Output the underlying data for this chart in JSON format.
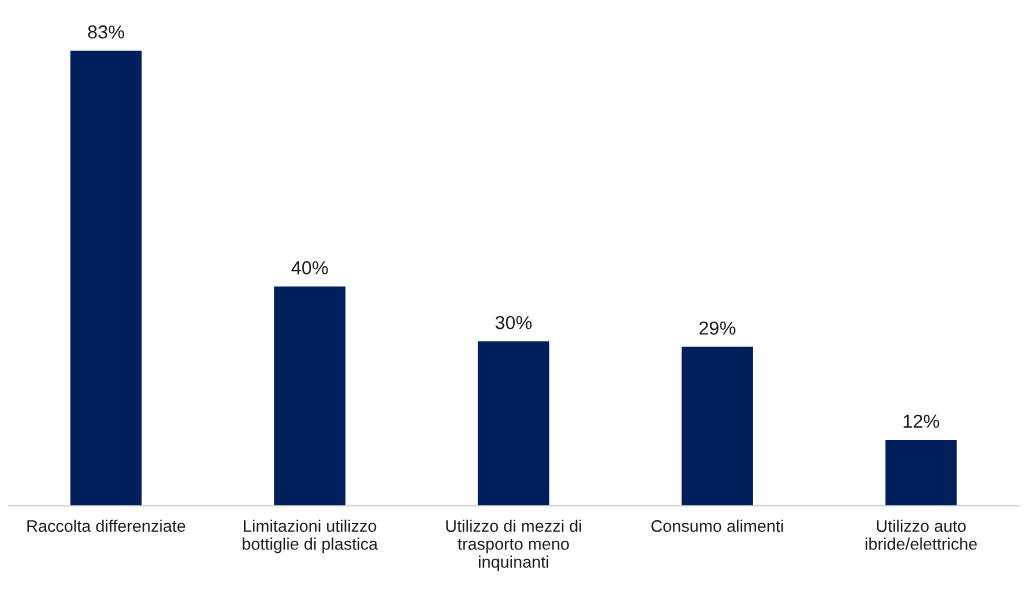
{
  "chart_data": {
    "type": "bar",
    "categories": [
      "Raccolta differenziate",
      "Limitazioni utilizzo\nbottiglie di plastica",
      "Utilizzo di mezzi di\ntrasporto meno\ninquinanti",
      "Consumo alimenti",
      "Utilizzo auto\nibride/elettriche"
    ],
    "values": [
      83,
      40,
      30,
      29,
      12
    ],
    "value_labels": [
      "83%",
      "40%",
      "30%",
      "29%",
      "12%"
    ],
    "color": "#001f5b",
    "grid": false
  }
}
